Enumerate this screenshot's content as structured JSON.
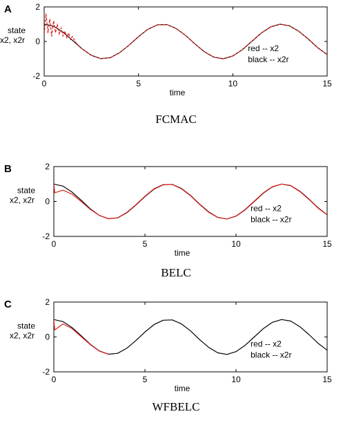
{
  "chart_data": [
    {
      "type": "line",
      "panel_label": "A",
      "caption": "FCMAC",
      "ylabel": [
        "state",
        "x2,  x2r"
      ],
      "xlabel": "time",
      "xlim": [
        0,
        15
      ],
      "ylim": [
        -2,
        2
      ],
      "xticks": [
        0,
        5,
        10,
        15
      ],
      "yticks": [
        2,
        0,
        -2
      ],
      "legend": [
        "red -- x2",
        "black -- x2r"
      ],
      "legend_position": "right-center",
      "grid": false,
      "colors": {
        "x2": "#e0201c",
        "x2r": "#000000"
      },
      "series": [
        {
          "key": "x2r",
          "color": "#000000",
          "style": "solid",
          "x": [
            0,
            0.5,
            1,
            1.5,
            2,
            2.5,
            3,
            3.5,
            4,
            4.5,
            5,
            5.5,
            6,
            6.5,
            7,
            7.5,
            8,
            8.5,
            9,
            9.5,
            10,
            10.5,
            11,
            11.5,
            12,
            12.5,
            13,
            13.5,
            14,
            14.5,
            15
          ],
          "y": [
            1.0,
            0.88,
            0.54,
            0.07,
            -0.42,
            -0.8,
            -0.99,
            -0.94,
            -0.65,
            -0.21,
            0.28,
            0.71,
            0.96,
            0.98,
            0.75,
            0.35,
            -0.15,
            -0.6,
            -0.91,
            -1.0,
            -0.84,
            -0.48,
            0.0,
            0.48,
            0.84,
            1.0,
            0.91,
            0.59,
            0.14,
            -0.36,
            -0.76
          ]
        },
        {
          "key": "x2",
          "color": "#e0201c",
          "style": "dashed",
          "x": [
            0,
            0.1,
            0.2,
            0.3,
            0.4,
            0.5,
            0.6,
            0.7,
            0.8,
            0.9,
            1.0,
            1.1,
            1.2,
            1.3,
            1.4,
            1.5,
            1.7,
            2,
            2.5,
            3,
            3.5,
            4,
            4.5,
            5,
            5.5,
            6,
            6.5,
            7,
            7.5,
            8,
            8.5,
            9,
            9.5,
            10,
            10.5,
            11,
            11.5,
            12,
            12.5,
            13,
            13.5,
            14,
            14.5,
            15
          ],
          "y": [
            0.4,
            1.6,
            0.5,
            1.3,
            0.3,
            1.2,
            0.5,
            1.0,
            0.4,
            0.8,
            0.3,
            0.6,
            0.2,
            0.5,
            0.1,
            0.3,
            -0.1,
            -0.42,
            -0.8,
            -0.99,
            -0.94,
            -0.65,
            -0.21,
            0.28,
            0.71,
            0.96,
            0.98,
            0.75,
            0.35,
            -0.15,
            -0.6,
            -0.91,
            -1.0,
            -0.84,
            -0.48,
            0.0,
            0.48,
            0.84,
            1.0,
            0.91,
            0.59,
            0.14,
            -0.36,
            -0.76
          ]
        }
      ]
    },
    {
      "type": "line",
      "panel_label": "B",
      "caption": "BELC",
      "ylabel": [
        "state",
        "x2,  x2r"
      ],
      "xlabel": "time",
      "xlim": [
        0,
        15
      ],
      "ylim": [
        -2,
        2
      ],
      "xticks": [
        0,
        5,
        10,
        15
      ],
      "yticks": [
        2,
        0,
        -2
      ],
      "legend": [
        "red -- x2",
        "black -- x2r"
      ],
      "legend_position": "right-center",
      "grid": false,
      "colors": {
        "x2": "#e0201c",
        "x2r": "#000000"
      },
      "series": [
        {
          "key": "x2r",
          "color": "#000000",
          "style": "solid",
          "x": [
            0,
            0.5,
            1,
            1.5,
            2,
            2.5,
            3,
            3.5,
            4,
            4.5,
            5,
            5.5,
            6,
            6.5,
            7,
            7.5,
            8,
            8.5,
            9,
            9.5,
            10,
            10.5,
            11,
            11.5,
            12,
            12.5,
            13,
            13.5,
            14,
            14.5,
            15
          ],
          "y": [
            1.0,
            0.88,
            0.54,
            0.07,
            -0.42,
            -0.8,
            -0.99,
            -0.94,
            -0.65,
            -0.21,
            0.28,
            0.71,
            0.96,
            0.98,
            0.75,
            0.35,
            -0.15,
            -0.6,
            -0.91,
            -1.0,
            -0.84,
            -0.48,
            0.0,
            0.48,
            0.84,
            1.0,
            0.91,
            0.59,
            0.14,
            -0.36,
            -0.76
          ]
        },
        {
          "key": "x2",
          "color": "#e0201c",
          "style": "solid",
          "x": [
            0,
            0.05,
            0.5,
            1,
            1.5,
            2,
            2.5,
            3,
            3.5,
            4,
            4.5,
            5,
            5.5,
            6,
            6.5,
            7,
            7.5,
            8,
            8.5,
            9,
            9.5,
            10,
            10.5,
            11,
            11.5,
            12,
            12.5,
            13,
            13.5,
            14,
            14.5,
            15
          ],
          "y": [
            1.0,
            0.5,
            0.65,
            0.42,
            0.0,
            -0.45,
            -0.8,
            -0.99,
            -0.93,
            -0.63,
            -0.19,
            0.3,
            0.73,
            0.97,
            0.97,
            0.73,
            0.33,
            -0.17,
            -0.62,
            -0.92,
            -1.0,
            -0.83,
            -0.46,
            0.02,
            0.5,
            0.85,
            1.0,
            0.9,
            0.57,
            0.12,
            -0.38,
            -0.77
          ]
        }
      ]
    },
    {
      "type": "line",
      "panel_label": "C",
      "caption": "WFBELC",
      "ylabel": [
        "state",
        "x2,  x2r"
      ],
      "xlabel": "time",
      "xlim": [
        0,
        15
      ],
      "ylim": [
        -2,
        2
      ],
      "xticks": [
        0,
        5,
        10,
        15
      ],
      "yticks": [
        2,
        0,
        -2
      ],
      "legend": [
        "red -- x2",
        "black -- x2r"
      ],
      "legend_position": "right-center",
      "grid": false,
      "colors": {
        "x2": "#e0201c",
        "x2r": "#000000"
      },
      "series": [
        {
          "key": "x2r",
          "color": "#000000",
          "style": "solid",
          "x": [
            0,
            0.5,
            1,
            1.5,
            2,
            2.5,
            3,
            3.5,
            4,
            4.5,
            5,
            5.5,
            6,
            6.5,
            7,
            7.5,
            8,
            8.5,
            9,
            9.5,
            10,
            10.5,
            11,
            11.5,
            12,
            12.5,
            13,
            13.5,
            14,
            14.5,
            15
          ],
          "y": [
            1.0,
            0.88,
            0.54,
            0.07,
            -0.42,
            -0.8,
            -0.99,
            -0.94,
            -0.65,
            -0.21,
            0.28,
            0.71,
            0.96,
            0.98,
            0.75,
            0.35,
            -0.15,
            -0.6,
            -0.91,
            -1.0,
            -0.84,
            -0.48,
            0.0,
            0.48,
            0.84,
            1.0,
            0.91,
            0.59,
            0.14,
            -0.36,
            -0.76
          ]
        },
        {
          "key": "x2",
          "color": "#e0201c",
          "style": "solid",
          "x": [
            0,
            0.05,
            0.5,
            1,
            1.5,
            2,
            2.5,
            3
          ],
          "y": [
            1.0,
            0.4,
            0.75,
            0.48,
            0.02,
            -0.44,
            -0.81,
            -0.99
          ]
        }
      ]
    }
  ]
}
